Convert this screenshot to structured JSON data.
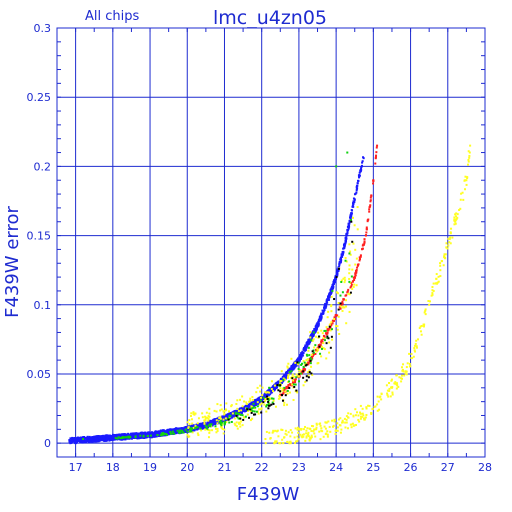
{
  "chart_data": {
    "type": "scatter",
    "title": "lmc_u4zn05",
    "subtitle": "All chips",
    "xlabel": "F439W",
    "ylabel": "F439W error",
    "xlim": [
      16.5,
      28
    ],
    "ylim": [
      -0.01,
      0.3
    ],
    "x_ticks": [
      17,
      18,
      19,
      20,
      21,
      22,
      23,
      24,
      25,
      26,
      27,
      28
    ],
    "y_ticks": [
      0,
      0.05,
      0.1,
      0.15,
      0.2,
      0.25,
      0.3
    ],
    "x_tick_labels": [
      "17",
      "18",
      "19",
      "20",
      "21",
      "22",
      "23",
      "24",
      "25",
      "26",
      "27",
      "28"
    ],
    "y_tick_labels": [
      "0",
      "0.05",
      "0.1",
      "0.15",
      "0.2",
      "0.25",
      "0.3"
    ],
    "grid": true,
    "legend": "none",
    "colors": {
      "axis": "#1e2bd0",
      "grid": "#1e2bd0",
      "main_locus": "#1a1aff",
      "edge": "#ff2020",
      "green": "#10d010",
      "yellow": "#ffff20",
      "dark": "#000000"
    },
    "series": [
      {
        "color_key": "main_locus",
        "points": [
          [
            17.0,
            0.002
          ],
          [
            17.5,
            0.003
          ],
          [
            18.0,
            0.004
          ],
          [
            18.5,
            0.005
          ],
          [
            19.0,
            0.006
          ],
          [
            19.5,
            0.008
          ],
          [
            20.0,
            0.01
          ],
          [
            20.5,
            0.013
          ],
          [
            21.0,
            0.018
          ],
          [
            21.5,
            0.024
          ],
          [
            22.0,
            0.032
          ],
          [
            22.5,
            0.044
          ],
          [
            23.0,
            0.06
          ],
          [
            23.5,
            0.085
          ],
          [
            23.8,
            0.105
          ],
          [
            24.0,
            0.12
          ],
          [
            24.2,
            0.14
          ],
          [
            24.4,
            0.165
          ],
          [
            24.6,
            0.19
          ],
          [
            24.8,
            0.215
          ]
        ]
      },
      {
        "color_key": "yellow",
        "points": [
          [
            22.1,
            0.003
          ],
          [
            22.6,
            0.004
          ],
          [
            23.1,
            0.006
          ],
          [
            23.6,
            0.009
          ],
          [
            24.1,
            0.013
          ],
          [
            24.6,
            0.02
          ],
          [
            25.1,
            0.028
          ],
          [
            25.5,
            0.04
          ],
          [
            25.9,
            0.055
          ],
          [
            26.2,
            0.075
          ],
          [
            26.5,
            0.1
          ],
          [
            26.8,
            0.125
          ],
          [
            27.2,
            0.16
          ],
          [
            27.5,
            0.19
          ],
          [
            27.6,
            0.215
          ]
        ]
      },
      {
        "color_key": "green",
        "points": [
          [
            17.2,
            0.003
          ],
          [
            18.3,
            0.004
          ],
          [
            20.1,
            0.011
          ],
          [
            21.3,
            0.022
          ],
          [
            22.2,
            0.04
          ],
          [
            22.8,
            0.052
          ],
          [
            23.4,
            0.08
          ],
          [
            23.9,
            0.11
          ],
          [
            24.0,
            0.2
          ],
          [
            24.3,
            0.21
          ]
        ]
      },
      {
        "color_key": "edge",
        "points": [
          [
            22.5,
            0.035
          ],
          [
            23.0,
            0.048
          ],
          [
            23.5,
            0.068
          ],
          [
            24.0,
            0.092
          ],
          [
            24.5,
            0.12
          ],
          [
            24.8,
            0.15
          ],
          [
            25.0,
            0.19
          ],
          [
            25.1,
            0.215
          ]
        ]
      }
    ]
  }
}
